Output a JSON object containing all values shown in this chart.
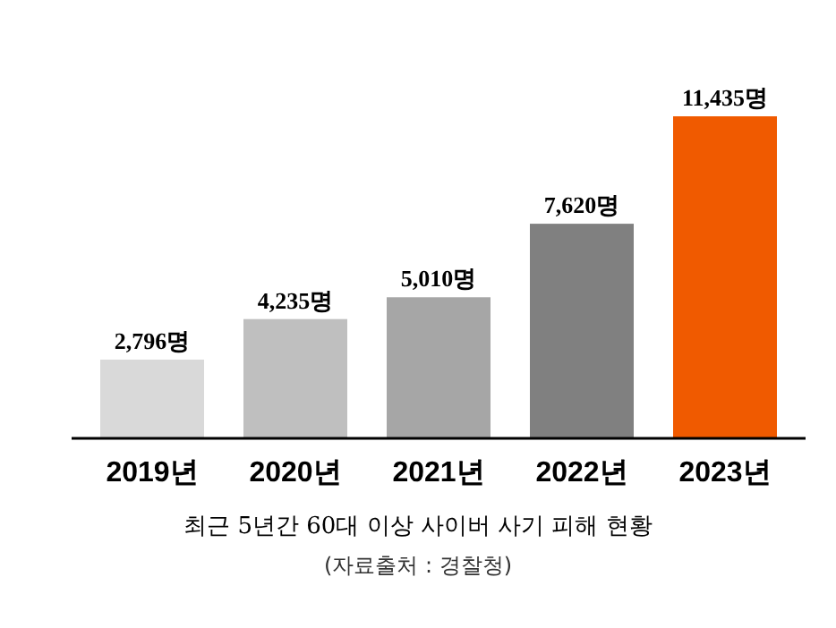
{
  "chart_data": {
    "type": "bar",
    "title": "최근 5년간 60대 이상 사이버 사기 피해 현황",
    "categories": [
      "2019년",
      "2020년",
      "2021년",
      "2022년",
      "2023년"
    ],
    "values": [
      2796,
      4235,
      5010,
      7620,
      11435
    ],
    "colors": [
      "#d9d9d9",
      "#bfbfbf",
      "#a6a6a6",
      "#808080",
      "#f05a00"
    ],
    "value_labels": [
      "2,796명",
      "4,235명",
      "5,010명",
      "7,620명",
      "11,435명"
    ],
    "annotations": [
      "(자료출처 : 경찰청)"
    ]
  }
}
